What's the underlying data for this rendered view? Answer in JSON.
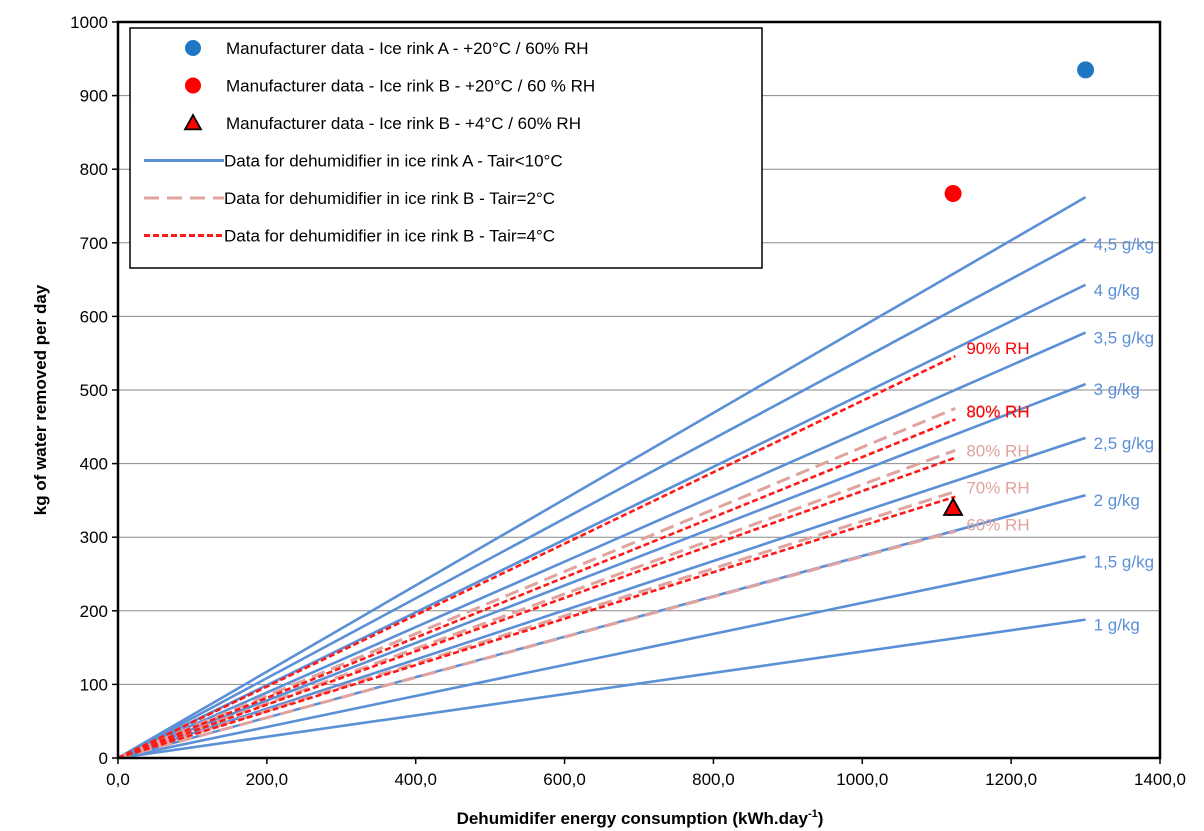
{
  "chart_data": {
    "type": "line",
    "xlabel": "Dehumidifer energy consumption (kWh.day",
    "xlabel_sup": "-1",
    "xlabel_end": ")",
    "ylabel": "kg of water removed per day",
    "xlim": [
      0,
      1400
    ],
    "ylim": [
      0,
      1000
    ],
    "x_ticks": [
      "0,0",
      "200,0",
      "400,0",
      "600,0",
      "800,0",
      "1000,0",
      "1200,0",
      "1400,0"
    ],
    "x_tick_values": [
      0,
      200,
      400,
      600,
      800,
      1000,
      1200,
      1400
    ],
    "y_ticks": [
      "0",
      "100",
      "200",
      "300",
      "400",
      "500",
      "600",
      "700",
      "800",
      "900",
      "1000"
    ],
    "y_tick_values": [
      0,
      100,
      200,
      300,
      400,
      500,
      600,
      700,
      800,
      900,
      1000
    ],
    "grid": "horizontal",
    "legend_position": "top-left",
    "colors": {
      "blue_line": "#5b8fd6",
      "blue_marker": "#1f77c4",
      "red": "#ff0000",
      "red_dash": "#ff1a1a",
      "pink_dash": "#e0a39e"
    },
    "legend": [
      {
        "label": "Manufacturer data - Ice rink A - +20°C / 60% RH",
        "symbol": "circle",
        "color": "#1f77c4"
      },
      {
        "label": "Manufacturer data - Ice rink B - +20°C / 60 % RH",
        "symbol": "circle",
        "color": "#ff0000"
      },
      {
        "label": "Manufacturer data - Ice rink B - +4°C / 60% RH",
        "symbol": "triangle",
        "color": "#ff0000"
      },
      {
        "label": "Data for dehumidifier in ice rink A - Tair<10°C",
        "symbol": "solid",
        "color": "#5b8fd6"
      },
      {
        "label": "Data for dehumidifier in ice rink B - Tair=2°C",
        "symbol": "longdash",
        "color": "#e0a39e"
      },
      {
        "label": "Data for dehumidifier in ice rink B - Tair=4°C",
        "symbol": "shortdash",
        "color": "#ff1a1a"
      }
    ],
    "series_rink_a": [
      {
        "x": [
          0,
          1300
        ],
        "y": [
          0,
          188
        ],
        "label": "1 g/kg"
      },
      {
        "x": [
          0,
          1300
        ],
        "y": [
          0,
          274
        ],
        "label": "1,5 g/kg"
      },
      {
        "x": [
          0,
          1300
        ],
        "y": [
          0,
          357
        ],
        "label": "2 g/kg"
      },
      {
        "x": [
          0,
          1300
        ],
        "y": [
          0,
          435
        ],
        "label": "2,5 g/kg"
      },
      {
        "x": [
          0,
          1300
        ],
        "y": [
          0,
          508
        ],
        "label": "3 g/kg"
      },
      {
        "x": [
          0,
          1300
        ],
        "y": [
          0,
          578
        ],
        "label": "3,5 g/kg"
      },
      {
        "x": [
          0,
          1300
        ],
        "y": [
          0,
          643
        ],
        "label": "4 g/kg"
      },
      {
        "x": [
          0,
          1300
        ],
        "y": [
          0,
          705
        ],
        "label": "4,5 g/kg"
      },
      {
        "x": [
          0,
          1300
        ],
        "y": [
          0,
          762
        ],
        "label": ""
      }
    ],
    "series_rink_b_2c": [
      {
        "x": [
          0,
          1125
        ],
        "y": [
          0,
          308
        ],
        "label": "60% RH"
      },
      {
        "x": [
          0,
          1125
        ],
        "y": [
          0,
          362
        ],
        "label": "70% RH"
      },
      {
        "x": [
          0,
          1125
        ],
        "y": [
          0,
          418
        ],
        "label": "80% RH"
      },
      {
        "x": [
          0,
          1125
        ],
        "y": [
          0,
          475
        ],
        "label": "90% RH"
      }
    ],
    "series_rink_b_4c": [
      {
        "x": [
          0,
          1125
        ],
        "y": [
          0,
          355
        ],
        "label": ""
      },
      {
        "x": [
          0,
          1125
        ],
        "y": [
          0,
          408
        ],
        "label": ""
      },
      {
        "x": [
          0,
          1125
        ],
        "y": [
          0,
          460
        ],
        "label": "80% RH"
      },
      {
        "x": [
          0,
          1125
        ],
        "y": [
          0,
          546
        ],
        "label": "90% RH"
      }
    ],
    "points": [
      {
        "name": "Ice rink A +20°C",
        "x": 1300,
        "y": 935,
        "symbol": "circle",
        "color": "#1f77c4"
      },
      {
        "name": "Ice rink B +20°C",
        "x": 1122,
        "y": 767,
        "symbol": "circle",
        "color": "#ff0000"
      },
      {
        "name": "Ice rink B +4°C",
        "x": 1122,
        "y": 340,
        "symbol": "triangle",
        "color": "#ff0000"
      }
    ]
  }
}
